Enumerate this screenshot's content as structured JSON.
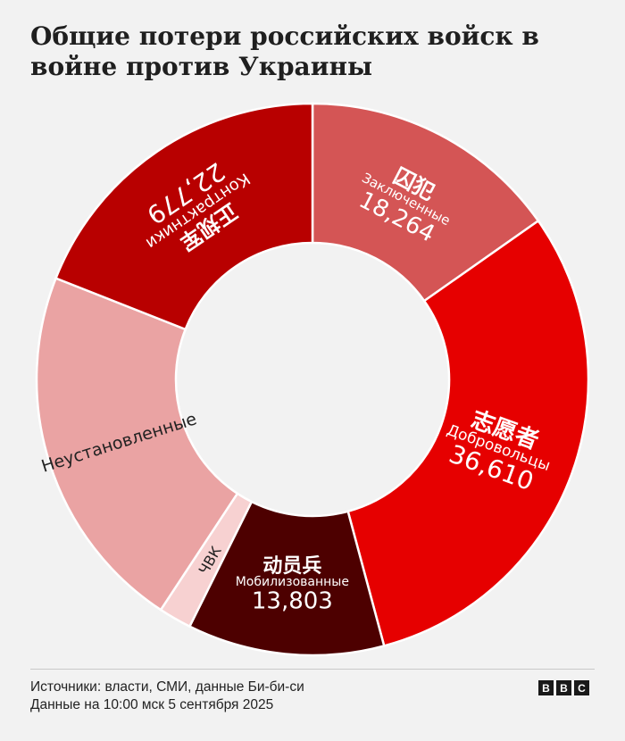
{
  "header": {
    "title": "Общие потери российских войск в войне против Украины"
  },
  "chart_data": {
    "type": "pie",
    "title": "Общие потери российских войск в войне против Украины",
    "slices": [
      {
        "chinese": "囚犯",
        "label": "Заключенные",
        "value": 18264,
        "value_label": "18,264",
        "color": "#d45555"
      },
      {
        "chinese": "志愿者",
        "label": "Добровольцы",
        "value": 36610,
        "value_label": "36,610",
        "color": "#e60000"
      },
      {
        "chinese": "动员兵",
        "label": "Мобилизованные",
        "value": 13803,
        "value_label": "13,803",
        "color": "#4d0000"
      },
      {
        "chinese": "",
        "label": "ЧВК",
        "value": 2300,
        "value_label": "",
        "color": "#f7d1d1"
      },
      {
        "chinese": "",
        "label": "Неустановленные",
        "value": 26000,
        "value_label": "",
        "color": "#eaa3a3"
      },
      {
        "chinese": "正规军",
        "label": "Контрактники",
        "value": 22779,
        "value_label": "22,779",
        "color": "#b80000"
      }
    ]
  },
  "footer": {
    "sources": "Источники: власти, СМИ, данные Би-би-си",
    "date": "Данные на 10:00 мск 5 сентября 2025"
  },
  "logo": {
    "letters": [
      "B",
      "B",
      "C"
    ]
  }
}
